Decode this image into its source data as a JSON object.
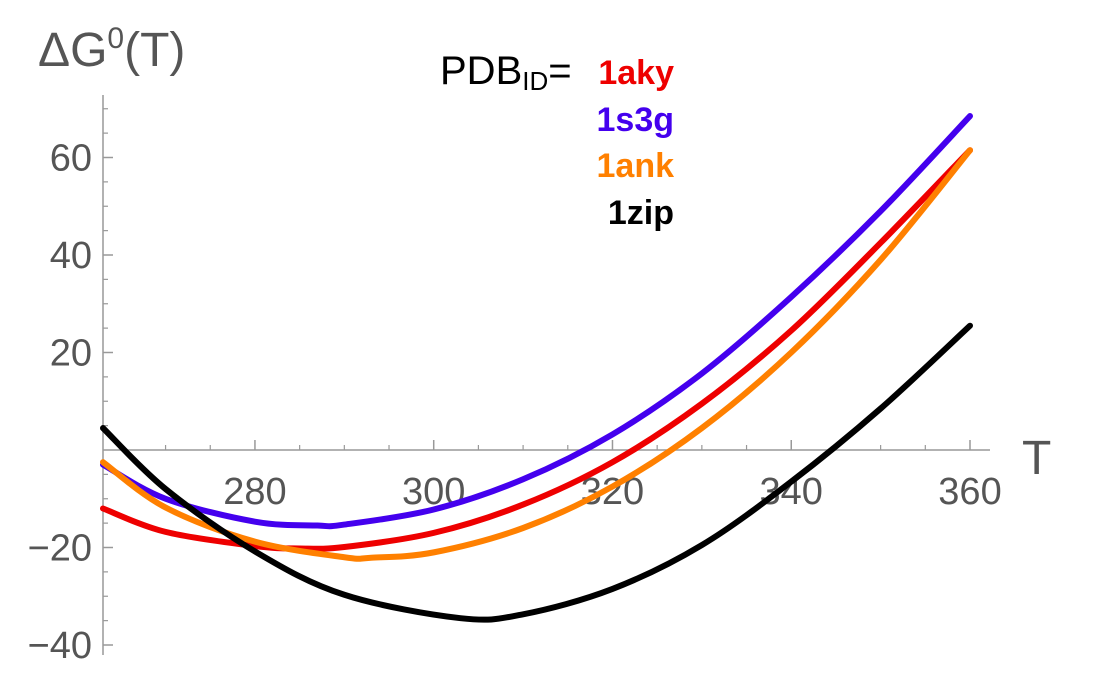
{
  "chart_data": {
    "type": "line",
    "title": "",
    "xlabel": "T",
    "ylabel": "ΔG⁰(T)",
    "ylabel_parts": {
      "base": "ΔG",
      "sup": "0",
      "arg": "(T)"
    },
    "xlim": [
      263,
      362
    ],
    "ylim": [
      -40,
      70
    ],
    "x_ticks": [
      280,
      300,
      320,
      340,
      360
    ],
    "y_ticks": [
      -40,
      -20,
      20,
      40,
      60
    ],
    "y_tick_labels": [
      "−40",
      "−20",
      "20",
      "40",
      "60"
    ],
    "legend": {
      "prefix_base": "PDB",
      "prefix_sub": "ID",
      "prefix_eq": "=",
      "position": "top-center"
    },
    "series": [
      {
        "name": "1aky",
        "color": "#ee0000",
        "points": [
          [
            263,
            -12
          ],
          [
            270,
            -16.8
          ],
          [
            280,
            -19.7
          ],
          [
            285,
            -20.2
          ],
          [
            290,
            -19.9
          ],
          [
            300,
            -17
          ],
          [
            310,
            -11.2
          ],
          [
            320,
            -2.5
          ],
          [
            330,
            9.5
          ],
          [
            340,
            24.5
          ],
          [
            350,
            42.5
          ],
          [
            360,
            61.5
          ]
        ]
      },
      {
        "name": "1s3g",
        "color": "#4400ee",
        "points": [
          [
            263,
            -3
          ],
          [
            270,
            -10
          ],
          [
            280,
            -14.7
          ],
          [
            287,
            -15.5
          ],
          [
            290,
            -15.3
          ],
          [
            300,
            -12.2
          ],
          [
            310,
            -6
          ],
          [
            320,
            3.2
          ],
          [
            330,
            15.7
          ],
          [
            340,
            31.4
          ],
          [
            350,
            49
          ],
          [
            360,
            68.5
          ]
        ]
      },
      {
        "name": "1ank",
        "color": "#ff8000",
        "points": [
          [
            263,
            -2.5
          ],
          [
            270,
            -11.8
          ],
          [
            280,
            -18.8
          ],
          [
            290,
            -22
          ],
          [
            293,
            -22.1
          ],
          [
            300,
            -21
          ],
          [
            310,
            -16
          ],
          [
            320,
            -7.5
          ],
          [
            330,
            4.5
          ],
          [
            340,
            20
          ],
          [
            350,
            39
          ],
          [
            360,
            61.5
          ]
        ]
      },
      {
        "name": "1zip",
        "color": "#000000",
        "points": [
          [
            263,
            4.5
          ],
          [
            270,
            -8
          ],
          [
            280,
            -20.8
          ],
          [
            290,
            -29.7
          ],
          [
            303,
            -34.5
          ],
          [
            310,
            -33.7
          ],
          [
            320,
            -28.5
          ],
          [
            330,
            -19.5
          ],
          [
            340,
            -6.5
          ],
          [
            350,
            8.5
          ],
          [
            360,
            25.5
          ]
        ]
      }
    ]
  }
}
